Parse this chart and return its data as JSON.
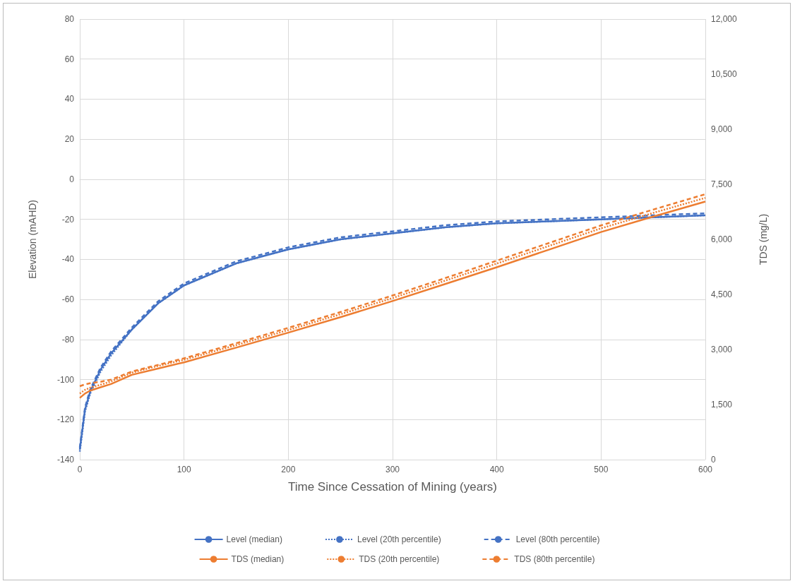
{
  "chart_data": {
    "type": "line",
    "xlabel": "Time Since Cessation of Mining (years)",
    "ylabel": "Elevation (mAHD)",
    "y2label": "TDS (mg/L)",
    "x": [
      0,
      5,
      10,
      20,
      30,
      50,
      75,
      100,
      150,
      200,
      250,
      300,
      350,
      400,
      450,
      500,
      550,
      600
    ],
    "xlim": [
      0,
      600
    ],
    "xticks": [
      0,
      100,
      200,
      300,
      400,
      500,
      600
    ],
    "ylim": [
      -140,
      80
    ],
    "yticks": [
      -140,
      -120,
      -100,
      -80,
      -60,
      -40,
      -20,
      0,
      20,
      40,
      60,
      80
    ],
    "y2lim": [
      0,
      12000
    ],
    "y2ticks": [
      {
        "value": 0,
        "label": "0"
      },
      {
        "value": 1500,
        "label": "1,500"
      },
      {
        "value": 3000,
        "label": "3,000"
      },
      {
        "value": 4500,
        "label": "4,500"
      },
      {
        "value": 6000,
        "label": "6,000"
      },
      {
        "value": 7500,
        "label": "7,500"
      },
      {
        "value": 9000,
        "label": "9,000"
      },
      {
        "value": 10500,
        "label": "10,500"
      },
      {
        "value": 12000,
        "label": "12,000"
      }
    ],
    "grid": true,
    "legend": "bottom",
    "marker": "none",
    "series": [
      {
        "name": "Level (median)",
        "color": "#4472c4",
        "line_style": "solid",
        "values": [
          -135,
          -115,
          -106,
          -95,
          -87,
          -75,
          -62,
          -53,
          -42,
          -35,
          -30,
          -27,
          -24,
          -22,
          -21,
          -20,
          -19,
          -18
        ]
      },
      {
        "name": "Level (20th percentile)",
        "color": "#4472c4",
        "line_style": "dotted",
        "values": [
          -136,
          -116,
          -107,
          -96,
          -88,
          -75,
          -62,
          -53,
          -42,
          -35,
          -30,
          -27,
          -24,
          -22,
          -21,
          -20,
          -19,
          -18
        ]
      },
      {
        "name": "Level (80th percentile)",
        "color": "#4472c4",
        "line_style": "dashed",
        "values": [
          -134,
          -114,
          -105,
          -94,
          -86,
          -74,
          -61,
          -52,
          -41,
          -34,
          -29,
          -26,
          -23,
          -21,
          -20,
          -19,
          -18,
          -17
        ]
      },
      {
        "name": "TDS (median)",
        "color": "#ed7d31",
        "line_style": "solid",
        "axis": "y2",
        "values": [
          1680,
          1800,
          1880,
          1970,
          2060,
          2310,
          2480,
          2650,
          3050,
          3460,
          3880,
          4320,
          4780,
          5240,
          5720,
          6200,
          6620,
          7030
        ]
      },
      {
        "name": "TDS (20th percentile)",
        "color": "#ed7d31",
        "line_style": "dotted",
        "axis": "y2",
        "values": [
          1800,
          1900,
          1960,
          2040,
          2130,
          2370,
          2550,
          2720,
          3120,
          3530,
          3960,
          4400,
          4870,
          5340,
          5820,
          6300,
          6720,
          7130
        ]
      },
      {
        "name": "TDS (80th percentile)",
        "color": "#ed7d31",
        "line_style": "dashed",
        "axis": "y2",
        "values": [
          2000,
          2050,
          2080,
          2120,
          2180,
          2400,
          2580,
          2760,
          3170,
          3590,
          4020,
          4470,
          4940,
          5420,
          5900,
          6380,
          6810,
          7230
        ]
      }
    ]
  }
}
